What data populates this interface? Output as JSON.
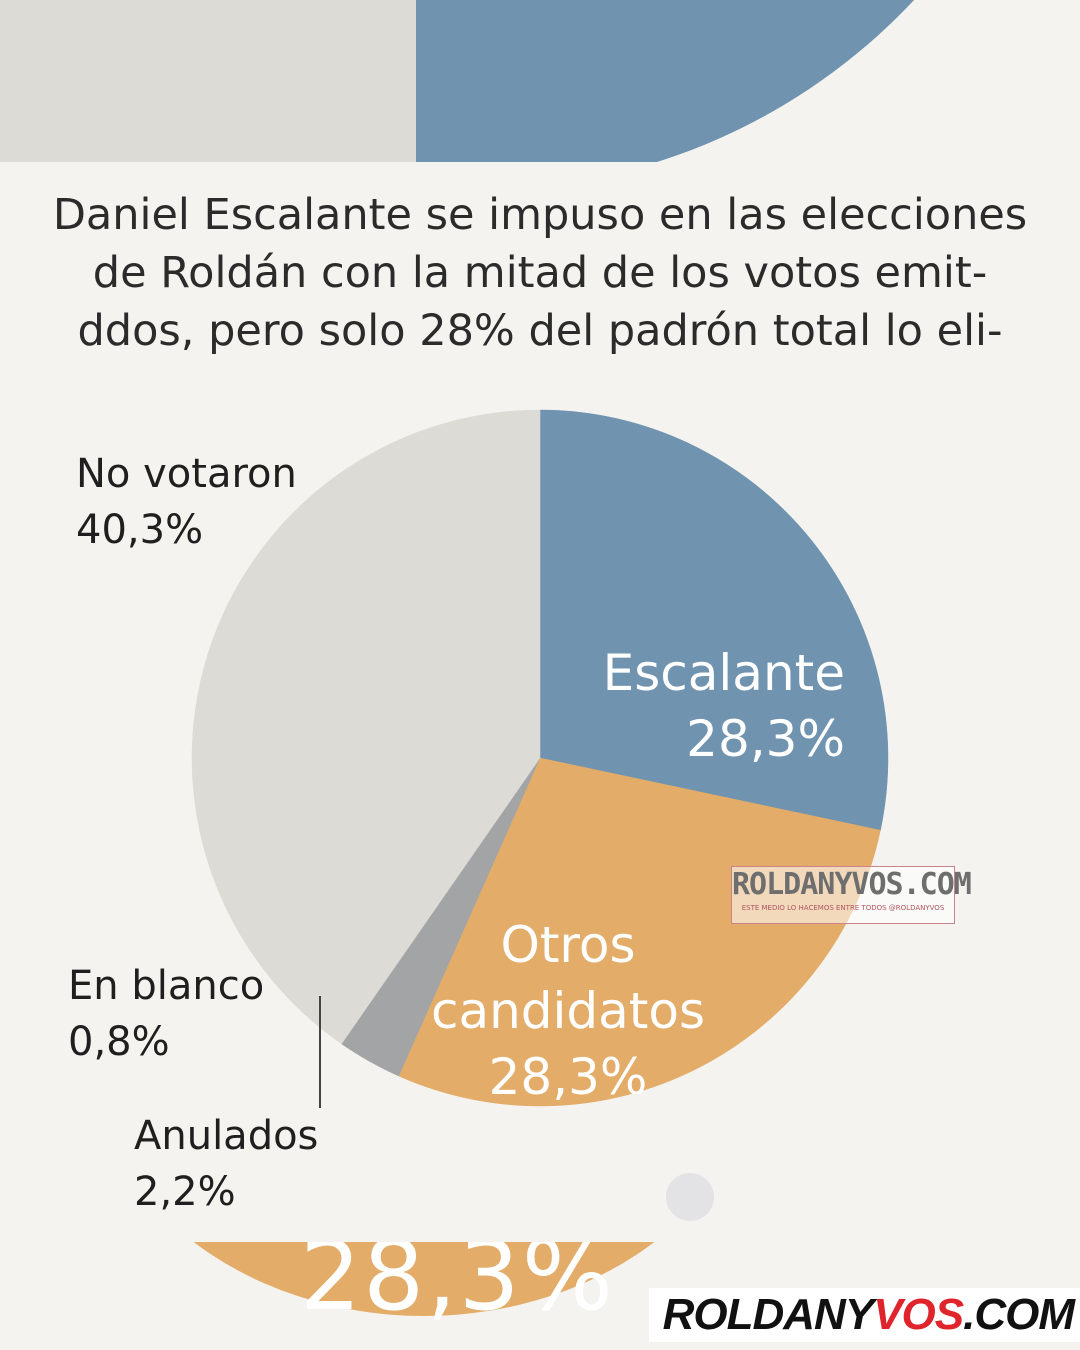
{
  "headline": "Daniel Escalante se impuso en las elecciones de Roldán con la mitad de los votos emit­ddos, pero solo 28% del padrón total lo eli-",
  "headline_lines": [
    "Daniel Escalante se impuso en las elecciones",
    "de Roldán con la mitad de los votos emit-",
    "ddos, pero solo 28% del padrón total lo eli-"
  ],
  "chart_data": {
    "type": "pie",
    "title": "",
    "start": "12 o'clock",
    "direction": "clockwise",
    "slices": [
      {
        "name": "Escalante",
        "label_lines": [
          "Escalante"
        ],
        "value_text": "28,3%",
        "value": 28.3,
        "color": "#7093b0",
        "label_placement": "inside",
        "label_color": "#ffffff"
      },
      {
        "name": "Otros candidatos",
        "label_lines": [
          "Otros",
          "candidatos"
        ],
        "value_text": "28,3%",
        "value": 28.3,
        "color": "#e3ac68",
        "label_placement": "inside",
        "label_color": "#ffffff"
      },
      {
        "name": "Anulados",
        "label_lines": [
          "Anulados"
        ],
        "value_text": "2,2%",
        "value": 2.2,
        "color": "#a3a4a5",
        "label_placement": "outside",
        "label_color": "#1f1f1f"
      },
      {
        "name": "En blanco",
        "label_lines": [
          "En blanco"
        ],
        "value_text": "0,8%",
        "value": 0.8,
        "color": "#a3a4a5",
        "label_placement": "outside",
        "label_color": "#1f1f1f"
      },
      {
        "name": "No votaron",
        "label_lines": [
          "No votaron"
        ],
        "value_text": "40,3%",
        "value": 40.3,
        "color": "#dcdbd6",
        "label_placement": "outside",
        "label_color": "#1f1f1f"
      }
    ]
  },
  "background_fragments": {
    "bottom_value": "28,3%"
  },
  "watermark": {
    "name": "ROLDANYVOS.COM",
    "tagline": "ESTE MEDIO LO HACEMOS ENTRE TODOS @ROLDANYVOS"
  },
  "brand": {
    "prefix": "ROLDANY",
    "accent": "VOS",
    "suffix": ".COM",
    "accent_color": "#e0242c"
  }
}
